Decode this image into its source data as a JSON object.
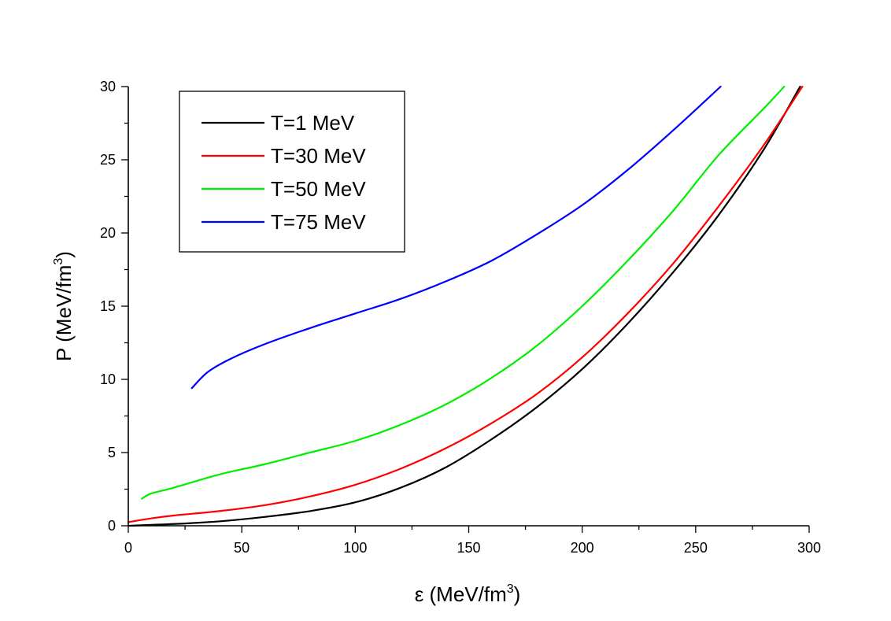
{
  "chart_data": {
    "type": "line",
    "xlabel": {
      "prefix": "ε (MeV/fm",
      "sup": "3",
      "suffix": ")"
    },
    "ylabel": {
      "prefix": "P (MeV/fm",
      "sup": "3",
      "suffix": ")"
    },
    "xlim": [
      0,
      300
    ],
    "ylim": [
      0,
      30
    ],
    "x_ticks": [
      0,
      50,
      100,
      150,
      200,
      250,
      300
    ],
    "y_ticks": [
      0,
      5,
      10,
      15,
      20,
      25,
      30
    ],
    "x_tick_labels": [
      "0",
      "50",
      "100",
      "150",
      "200",
      "250",
      "300"
    ],
    "y_tick_labels": [
      "0",
      "5",
      "10",
      "15",
      "20",
      "25",
      "30"
    ],
    "legend_position": "top-left",
    "series": [
      {
        "name": "T=1 MeV",
        "color": "#000000",
        "x": [
          0,
          20,
          40,
          60,
          80,
          100,
          120,
          140,
          160,
          180,
          200,
          220,
          240,
          260,
          280,
          296
        ],
        "y": [
          0,
          0.12,
          0.3,
          0.6,
          1.0,
          1.6,
          2.6,
          4.0,
          5.9,
          8.1,
          10.7,
          13.8,
          17.3,
          21.2,
          25.7,
          30
        ]
      },
      {
        "name": "T=30 MeV",
        "color": "#ff0000",
        "x": [
          0,
          10,
          20,
          40,
          60,
          80,
          100,
          120,
          140,
          160,
          180,
          200,
          220,
          240,
          260,
          280,
          297
        ],
        "y": [
          0.25,
          0.5,
          0.7,
          1.0,
          1.4,
          2.0,
          2.8,
          3.9,
          5.3,
          7.0,
          9.0,
          11.5,
          14.5,
          17.9,
          21.8,
          26.0,
          30
        ]
      },
      {
        "name": "T=50 MeV",
        "color": "#00ee00",
        "x": [
          6,
          10,
          20,
          40,
          60,
          80,
          100,
          120,
          140,
          160,
          180,
          200,
          220,
          240,
          260,
          280,
          289
        ],
        "y": [
          1.85,
          2.2,
          2.6,
          3.5,
          4.2,
          5.0,
          5.8,
          6.9,
          8.3,
          10.1,
          12.3,
          15.0,
          18.1,
          21.5,
          25.3,
          28.5,
          30
        ]
      },
      {
        "name": "T=75 MeV",
        "color": "#0000ff",
        "x": [
          28,
          35,
          45,
          60,
          80,
          100,
          120,
          140,
          160,
          180,
          200,
          220,
          240,
          261
        ],
        "y": [
          9.4,
          10.5,
          11.4,
          12.4,
          13.5,
          14.5,
          15.5,
          16.7,
          18.1,
          19.9,
          21.9,
          24.3,
          27.0,
          30
        ]
      }
    ]
  }
}
